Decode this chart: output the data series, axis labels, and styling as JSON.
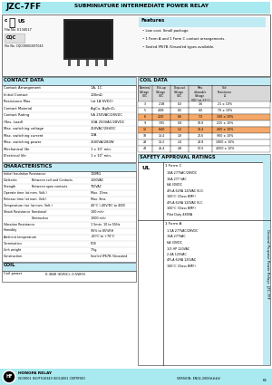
{
  "title_left": "JZC-7FF",
  "title_right": "SUBMINIATURE INTERMEDIATE POWER RELAY",
  "header_bg": "#a8eaf0",
  "page_bg": "#ffffff",
  "section_bg": "#c0eaf4",
  "features_title": "Features",
  "features": [
    "Low cost, Small package.",
    "1 Form A and 1 Form C contact arrangements.",
    "Sealed IP67B /Unsealed types available."
  ],
  "contact_data_title": "CONTACT DATA",
  "contact_data": [
    [
      "Contact Arrangement",
      "1A, 1C"
    ],
    [
      "Initial Contact",
      "100mΩ"
    ],
    [
      "Resistance Max.",
      "(at 1A 6VDC)"
    ],
    [
      "Contact Material",
      "AgCu, AgSnO₂"
    ],
    [
      "Contact Rating",
      "5A 250VAC/28VDC"
    ],
    [
      "(Res. Load)",
      "10A 250VAC/28VDC"
    ],
    [
      "Max. switching voltage",
      "250VAC/28VDC"
    ],
    [
      "Max. switching current",
      "10A"
    ],
    [
      "Max. switching power",
      "2500VA/280W"
    ],
    [
      "Mechanical life",
      "1 x 10⁷ min."
    ],
    [
      "Electrical life",
      "1 x 10⁵ min."
    ]
  ],
  "characteristics_title": "CHARACTERISTICS",
  "characteristics": [
    [
      "Initial Insulation Resistance",
      "",
      "100MΩ"
    ],
    [
      "Dielectric",
      "Between coil and Contacts",
      "1500VAC"
    ],
    [
      "Strength",
      "Between open contacts",
      "750VAC"
    ],
    [
      "Operate time (at nom. Volt.)",
      "",
      "Max. 15ms"
    ],
    [
      "Release time (at nom. Volt.)",
      "",
      "Max. 8ms"
    ],
    [
      "Temperature rise (at nom. Volt.)",
      "",
      "40°C (-40V/DC to 40D)"
    ],
    [
      "Shock Resistance",
      "Functional",
      "100 m/s²"
    ],
    [
      "",
      "Destructive",
      "1000 m/s²"
    ],
    [
      "Vibration Resistance",
      "",
      "1 5min. 10 to 55Hz"
    ],
    [
      "Humidity",
      "",
      "95% to 85%RH"
    ],
    [
      "Ambient temperature",
      "",
      "-40°C to +70°C"
    ],
    [
      "Termination",
      "",
      "PCB"
    ],
    [
      "Unit weight",
      "",
      "7.5g"
    ],
    [
      "Construction",
      "",
      "Sealed IP67B /Unsealed"
    ]
  ],
  "coil_section_title": "COIL",
  "coil_data_row": [
    "Coil power",
    "0.36W (6VDC), 0.5W(5)"
  ],
  "coil_data_title": "COIL DATA",
  "coil_table_headers": [
    "Nominal\nVoltage\nVDC",
    "Pick-up\nVoltage\nVDC",
    "Drop-out\nVoltage\nVDC",
    "Max.\nallowable\nVoltage\nVDC (at 23°C)",
    "Coil\nResistance\nΩ"
  ],
  "coil_table_data": [
    [
      "3",
      "2.1B",
      "0.3",
      "3.6",
      "21 ± 10%"
    ],
    [
      "5",
      "4.0B",
      "0.5",
      "6.0",
      "70 ± 10%"
    ],
    [
      "6",
      "4.20",
      "0.6",
      "7.2",
      "100 ± 10%"
    ],
    [
      "9",
      "7.05",
      "0.9",
      "10.8",
      "225 ± 10%"
    ],
    [
      "12",
      "8.40",
      "1.2",
      "14.4",
      "400 ± 10%"
    ],
    [
      "18",
      "13.4",
      "1.8",
      "21.6",
      "900 ± 10%"
    ],
    [
      "24",
      "13.2",
      "2.4",
      "28.8",
      "1800 ± 10%"
    ],
    [
      "48",
      "26.4",
      "4.8",
      "57.6",
      "4000 ± 10%"
    ]
  ],
  "highlighted_rows": [
    2,
    4
  ],
  "highlight_color": "#f5a868",
  "safety_title": "SAFETY APPROVAL RATINGS",
  "safety_ul": "UL",
  "safety_1formc": "1 Form C",
  "safety_1forma": "1 Form A",
  "safety_1formc_items": [
    "10A 277VAC/28VDC",
    "16A 277 VAC",
    "6A 30VDC",
    "4FLA 6LRA 120VAC N.O.",
    "100°C (Class BMF)",
    "4FLA 6LRA 120VAC N.C.",
    "100°C (Class BMF)",
    "Pilot Duty 480VA"
  ],
  "safety_1forma_items": [
    "1.5A 277VAC/28VDC",
    "15A 277VAC",
    "6A 30VDC",
    "1/3 HP 120VAC",
    "2.4A 125VAC",
    "4FLA 6LRA 125VAC",
    "100°C (Class BMF)"
  ],
  "side_label": "General Purpose Power Relays  JZC-7FF",
  "footer_logo_text": "HONGFA RELAY",
  "footer_cert": "ISO9001 ISO/TS16949 ISO14001 CERTIFIED",
  "footer_version": "VERSION: EN02-2009####",
  "footer_page": "61"
}
